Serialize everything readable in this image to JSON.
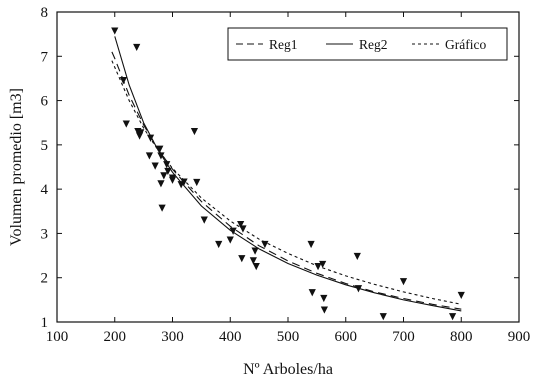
{
  "chart_data": {
    "type": "scatter",
    "title": "",
    "xlabel": "Nº Arboles/ha",
    "ylabel": "Volumen promedio [m3]",
    "xlim": [
      100,
      900
    ],
    "ylim": [
      1,
      8
    ],
    "x_ticks": [
      100,
      200,
      300,
      400,
      500,
      600,
      700,
      800,
      900
    ],
    "y_ticks": [
      1,
      2,
      3,
      4,
      5,
      6,
      7,
      8
    ],
    "x_tick_labels": [
      "100",
      "200",
      "300",
      "400",
      "500",
      "600",
      "700",
      "800",
      "900"
    ],
    "y_tick_labels": [
      "1",
      "2",
      "3",
      "4",
      "5",
      "6",
      "7",
      "8"
    ],
    "grid": false,
    "legend_position": "top-right",
    "legend_border": true,
    "points": {
      "marker": "inverted-triangle",
      "color": "#111111",
      "x": [
        200,
        215,
        220,
        238,
        240,
        243,
        245,
        260,
        262,
        270,
        278,
        280,
        280,
        282,
        285,
        290,
        292,
        300,
        300,
        315,
        320,
        338,
        342,
        355,
        380,
        400,
        405,
        418,
        420,
        422,
        440,
        443,
        445,
        460,
        540,
        542,
        552,
        560,
        562,
        563,
        620,
        622,
        665,
        700,
        785,
        800
      ],
      "y": [
        7.57,
        6.45,
        5.47,
        7.2,
        5.3,
        5.2,
        5.27,
        4.75,
        5.15,
        4.52,
        4.9,
        4.75,
        4.12,
        3.57,
        4.3,
        4.55,
        4.4,
        4.2,
        4.25,
        4.1,
        4.16,
        5.3,
        4.15,
        3.3,
        2.75,
        2.85,
        3.05,
        3.2,
        2.43,
        3.1,
        2.38,
        2.6,
        2.25,
        2.75,
        2.75,
        1.66,
        2.25,
        2.3,
        1.53,
        1.27,
        2.48,
        1.75,
        1.12,
        1.91,
        1.12,
        1.6
      ]
    },
    "series": [
      {
        "name": "Reg1",
        "style": "dashed",
        "x": [
          195,
          200,
          225,
          250,
          275,
          300,
          350,
          400,
          450,
          500,
          550,
          600,
          650,
          700,
          750,
          800
        ],
        "y": [
          7.1,
          6.95,
          6.12,
          5.45,
          4.9,
          4.45,
          3.72,
          3.16,
          2.72,
          2.38,
          2.1,
          1.87,
          1.68,
          1.53,
          1.4,
          1.29
        ]
      },
      {
        "name": "Reg2",
        "style": "solid",
        "x": [
          200,
          225,
          250,
          275,
          300,
          350,
          400,
          450,
          500,
          550,
          600,
          650,
          700,
          750,
          800
        ],
        "y": [
          7.45,
          6.35,
          5.5,
          4.88,
          4.38,
          3.62,
          3.07,
          2.65,
          2.32,
          2.06,
          1.84,
          1.66,
          1.5,
          1.37,
          1.25
        ]
      },
      {
        "name": "Gráfico",
        "style": "dotted",
        "x": [
          195,
          200,
          225,
          250,
          275,
          300,
          350,
          400,
          450,
          500,
          550,
          600,
          650,
          700,
          750,
          800
        ],
        "y": [
          6.9,
          6.75,
          6.0,
          5.38,
          4.88,
          4.47,
          3.8,
          3.28,
          2.87,
          2.55,
          2.27,
          2.04,
          1.85,
          1.68,
          1.53,
          1.4
        ]
      }
    ]
  }
}
